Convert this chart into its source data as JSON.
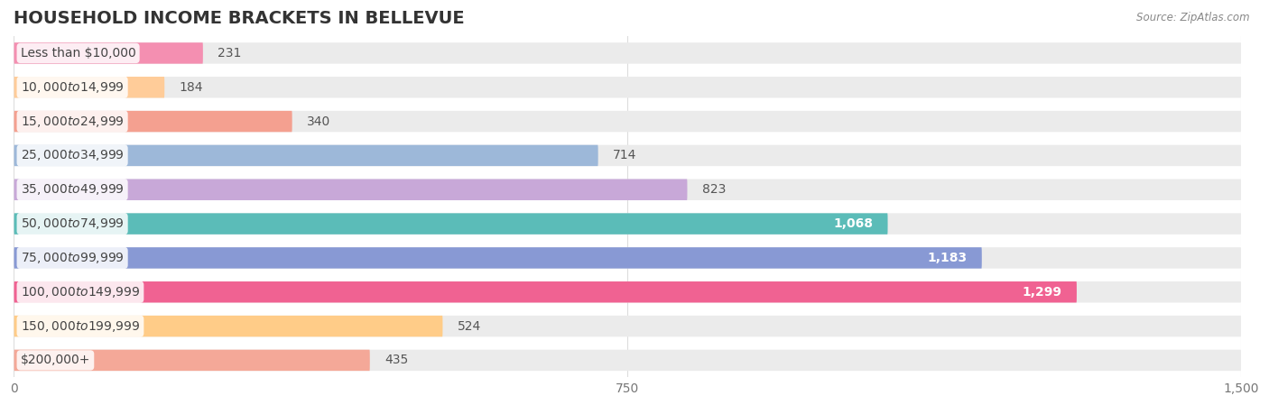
{
  "title": "HOUSEHOLD INCOME BRACKETS IN BELLEVUE",
  "source": "Source: ZipAtlas.com",
  "categories": [
    "Less than $10,000",
    "$10,000 to $14,999",
    "$15,000 to $24,999",
    "$25,000 to $34,999",
    "$35,000 to $49,999",
    "$50,000 to $74,999",
    "$75,000 to $99,999",
    "$100,000 to $149,999",
    "$150,000 to $199,999",
    "$200,000+"
  ],
  "values": [
    231,
    184,
    340,
    714,
    823,
    1068,
    1183,
    1299,
    524,
    435
  ],
  "colors": [
    "#F48FB1",
    "#FFCC99",
    "#F4A090",
    "#9DB8D9",
    "#C8A8D8",
    "#5BBCB8",
    "#8899D4",
    "#F06292",
    "#FFCC88",
    "#F4A898"
  ],
  "bar_bg_color": "#EBEBEB",
  "xlim_max": 1500,
  "xticks": [
    0,
    750,
    1500
  ],
  "background_color": "#FFFFFF",
  "title_fontsize": 14,
  "label_fontsize": 10,
  "value_fontsize": 10
}
